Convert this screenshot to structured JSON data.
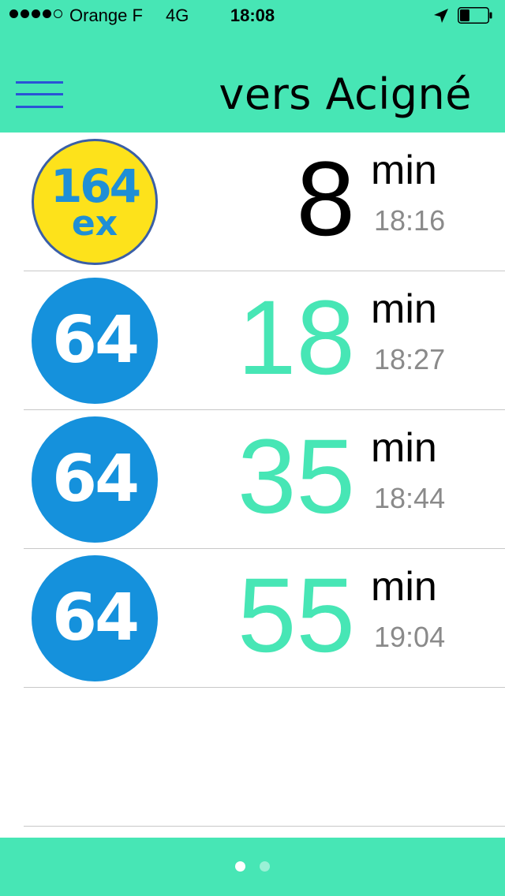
{
  "status_bar": {
    "signal_bars_filled": 4,
    "signal_bars_total": 5,
    "carrier": "Orange F",
    "network": "4G",
    "time": "18:08",
    "location_icon": "location-arrow-icon",
    "battery_level": 0.35
  },
  "header": {
    "menu_icon": "hamburger-menu-icon",
    "title": "vers Acigné"
  },
  "colors": {
    "accent": "#47e6b5",
    "upcoming_minutes": "#000000",
    "later_minutes": "#47e6b5",
    "express_badge_bg": "#fde21b",
    "express_badge_text": "#1f8fd6",
    "regular_badge_bg": "#1591dc"
  },
  "departures": [
    {
      "line": "164",
      "line_suffix": "ex",
      "badge_style": "express",
      "minutes": "8",
      "unit": "min",
      "time": "18:16",
      "minutes_color": "#000000"
    },
    {
      "line": "64",
      "line_suffix": "",
      "badge_style": "regular",
      "minutes": "18",
      "unit": "min",
      "time": "18:27",
      "minutes_color": "#47e6b5"
    },
    {
      "line": "64",
      "line_suffix": "",
      "badge_style": "regular",
      "minutes": "35",
      "unit": "min",
      "time": "18:44",
      "minutes_color": "#47e6b5"
    },
    {
      "line": "64",
      "line_suffix": "",
      "badge_style": "regular",
      "minutes": "55",
      "unit": "min",
      "time": "19:04",
      "minutes_color": "#47e6b5"
    }
  ],
  "pager": {
    "pages": 2,
    "current": 0
  }
}
